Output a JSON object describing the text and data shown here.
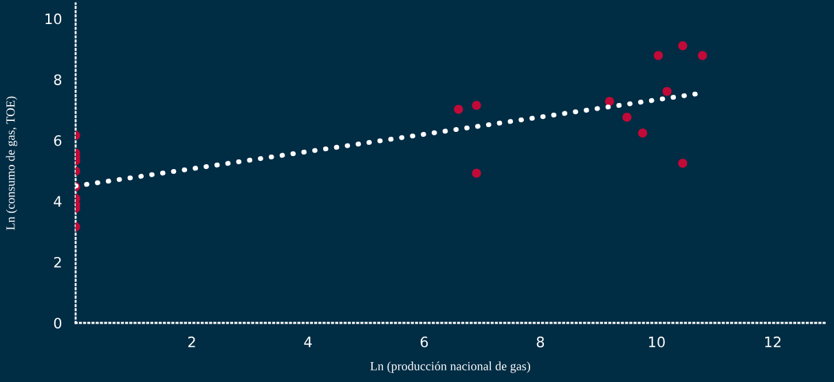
{
  "chart_data": {
    "type": "scatter",
    "xlabel": "Ln (producción nacional de gas)",
    "ylabel": "Ln (consumo de gas, TOE)",
    "xlim": [
      0,
      12.9
    ],
    "ylim": [
      0,
      10.5
    ],
    "xticks": [
      2,
      4,
      6,
      8,
      10,
      12
    ],
    "yticks": [
      0,
      2,
      4,
      6,
      8,
      10
    ],
    "grid": false,
    "series": [
      {
        "marker": "circle",
        "color": "#c20a38",
        "x": [
          0,
          0,
          0,
          0,
          0,
          0,
          0,
          0,
          0,
          0,
          6.59,
          6.9,
          6.9,
          9.19,
          9.49,
          9.76,
          10.03,
          10.18,
          10.45,
          10.45,
          10.79
        ],
        "values": [
          6.16,
          5.58,
          5.46,
          5.33,
          4.99,
          4.47,
          4.09,
          3.9,
          3.77,
          3.16,
          7.02,
          7.15,
          4.92,
          7.28,
          6.76,
          6.24,
          8.79,
          7.61,
          9.11,
          5.25,
          8.79
        ]
      },
      {
        "type": "line",
        "marker": "none",
        "color": "#ffffff",
        "line_style": "dotted",
        "x": [
          0,
          10.73
        ],
        "values": [
          4.5,
          7.54
        ]
      }
    ]
  }
}
